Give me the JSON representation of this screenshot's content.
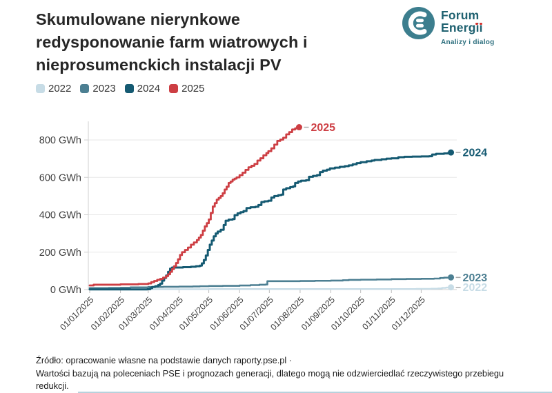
{
  "header": {
    "title_lines": [
      "Skumulowane nierynkowe",
      "redysponowanie farm wiatrowych i",
      "nieprosumenckich instalacji PV"
    ]
  },
  "logo": {
    "line1": "Forum",
    "line2": "Energii",
    "tagline": "Analizy i dialog",
    "teal": "#3c7e8e",
    "text_teal": "#1f6170",
    "red": "#d8322d"
  },
  "legend": {
    "items": [
      {
        "label": "2022",
        "color": "#c7dce6"
      },
      {
        "label": "2023",
        "color": "#4c7f92"
      },
      {
        "label": "2024",
        "color": "#155a72"
      },
      {
        "label": "2025",
        "color": "#cd3e43"
      }
    ]
  },
  "chart_data": {
    "type": "line",
    "step_interpolation": "step-after",
    "title": "Skumulowane nierynkowe redysponowanie farm wiatrowych i nieprosumenckich instalacji PV",
    "y_unit": "GWh",
    "ylim": [
      0,
      880
    ],
    "grid": "horizontal",
    "legend_position": "top-left",
    "y_ticks": [
      {
        "value": 0,
        "label": "0 GWh"
      },
      {
        "value": 200,
        "label": "200 GWh"
      },
      {
        "value": 400,
        "label": "400 GWh"
      },
      {
        "value": 600,
        "label": "600 GWh"
      },
      {
        "value": 800,
        "label": "800 GWh"
      }
    ],
    "x_ticks": {
      "days": [
        1,
        32,
        60,
        91,
        121,
        152,
        182,
        213,
        244,
        274,
        305,
        335
      ],
      "labels": [
        "01/01/2025",
        "01/02/2025",
        "01/03/2025",
        "01/04/2025",
        "01/05/2025",
        "01/06/2025",
        "01/07/2025",
        "01/08/2025",
        "01/09/2025",
        "01/10/2025",
        "01/11/2025",
        "01/12/2025"
      ]
    },
    "series": [
      {
        "name": "2022",
        "color": "#c7dce6",
        "end_label": "2022",
        "line_width": 2.4,
        "points": [
          [
            1,
            2
          ],
          [
            60,
            2
          ],
          [
            121,
            3
          ],
          [
            182,
            3
          ],
          [
            244,
            3
          ],
          [
            305,
            3
          ],
          [
            330,
            4
          ],
          [
            345,
            5
          ],
          [
            352,
            6
          ],
          [
            356,
            9
          ],
          [
            360,
            11
          ],
          [
            365,
            12
          ]
        ]
      },
      {
        "name": "2023",
        "color": "#4c7f92",
        "end_label": "2023",
        "line_width": 2.6,
        "points": [
          [
            1,
            8
          ],
          [
            20,
            9
          ],
          [
            32,
            10
          ],
          [
            42,
            12
          ],
          [
            60,
            14
          ],
          [
            75,
            15
          ],
          [
            91,
            16
          ],
          [
            105,
            17
          ],
          [
            112,
            18
          ],
          [
            121,
            19
          ],
          [
            135,
            20
          ],
          [
            152,
            22
          ],
          [
            163,
            24
          ],
          [
            172,
            26
          ],
          [
            178,
            27
          ],
          [
            180,
            45
          ],
          [
            213,
            46
          ],
          [
            228,
            47
          ],
          [
            244,
            48
          ],
          [
            256,
            50
          ],
          [
            262,
            52
          ],
          [
            274,
            53
          ],
          [
            290,
            54
          ],
          [
            305,
            56
          ],
          [
            320,
            57
          ],
          [
            335,
            58
          ],
          [
            348,
            59
          ],
          [
            354,
            62
          ],
          [
            358,
            64
          ],
          [
            365,
            65
          ]
        ]
      },
      {
        "name": "2024",
        "color": "#155a72",
        "end_label": "2024",
        "line_width": 3,
        "points": [
          [
            1,
            1
          ],
          [
            59,
            2
          ],
          [
            62,
            8
          ],
          [
            64,
            14
          ],
          [
            67,
            18
          ],
          [
            70,
            24
          ],
          [
            72,
            32
          ],
          [
            74,
            48
          ],
          [
            76,
            62
          ],
          [
            78,
            75
          ],
          [
            80,
            95
          ],
          [
            82,
            112
          ],
          [
            84,
            118
          ],
          [
            95,
            120
          ],
          [
            103,
            122
          ],
          [
            108,
            125
          ],
          [
            112,
            128
          ],
          [
            114,
            140
          ],
          [
            116,
            158
          ],
          [
            118,
            182
          ],
          [
            120,
            212
          ],
          [
            122,
            240
          ],
          [
            124,
            262
          ],
          [
            126,
            285
          ],
          [
            128,
            300
          ],
          [
            130,
            310
          ],
          [
            133,
            320
          ],
          [
            136,
            345
          ],
          [
            138,
            368
          ],
          [
            141,
            374
          ],
          [
            145,
            377
          ],
          [
            147,
            398
          ],
          [
            150,
            408
          ],
          [
            153,
            414
          ],
          [
            156,
            420
          ],
          [
            159,
            436
          ],
          [
            163,
            440
          ],
          [
            168,
            443
          ],
          [
            171,
            452
          ],
          [
            174,
            468
          ],
          [
            177,
            472
          ],
          [
            181,
            475
          ],
          [
            184,
            492
          ],
          [
            187,
            500
          ],
          [
            191,
            505
          ],
          [
            194,
            508
          ],
          [
            196,
            535
          ],
          [
            199,
            542
          ],
          [
            203,
            548
          ],
          [
            206,
            552
          ],
          [
            208,
            570
          ],
          [
            211,
            578
          ],
          [
            214,
            582
          ],
          [
            219,
            585
          ],
          [
            222,
            603
          ],
          [
            226,
            608
          ],
          [
            230,
            612
          ],
          [
            233,
            628
          ],
          [
            236,
            636
          ],
          [
            240,
            641
          ],
          [
            243,
            648
          ],
          [
            248,
            652
          ],
          [
            253,
            656
          ],
          [
            258,
            660
          ],
          [
            262,
            664
          ],
          [
            266,
            670
          ],
          [
            270,
            676
          ],
          [
            274,
            681
          ],
          [
            280,
            686
          ],
          [
            285,
            690
          ],
          [
            288,
            693
          ],
          [
            295,
            697
          ],
          [
            300,
            700
          ],
          [
            305,
            702
          ],
          [
            312,
            708
          ],
          [
            318,
            710
          ],
          [
            326,
            711
          ],
          [
            335,
            712
          ],
          [
            343,
            713
          ],
          [
            346,
            722
          ],
          [
            350,
            726
          ],
          [
            358,
            728
          ],
          [
            362,
            730
          ],
          [
            365,
            733
          ]
        ]
      },
      {
        "name": "2025",
        "color": "#cd3e43",
        "end_label": "2025",
        "line_width": 2.8,
        "points": [
          [
            1,
            22
          ],
          [
            5,
            26
          ],
          [
            32,
            28
          ],
          [
            50,
            30
          ],
          [
            60,
            33
          ],
          [
            63,
            40
          ],
          [
            66,
            46
          ],
          [
            69,
            52
          ],
          [
            72,
            57
          ],
          [
            75,
            64
          ],
          [
            78,
            72
          ],
          [
            80,
            82
          ],
          [
            82,
            95
          ],
          [
            84,
            110
          ],
          [
            86,
            125
          ],
          [
            88,
            142
          ],
          [
            90,
            162
          ],
          [
            92,
            185
          ],
          [
            94,
            200
          ],
          [
            97,
            212
          ],
          [
            100,
            225
          ],
          [
            103,
            240
          ],
          [
            106,
            252
          ],
          [
            109,
            265
          ],
          [
            111,
            278
          ],
          [
            113,
            292
          ],
          [
            115,
            315
          ],
          [
            117,
            338
          ],
          [
            119,
            355
          ],
          [
            121,
            375
          ],
          [
            123,
            410
          ],
          [
            125,
            444
          ],
          [
            127,
            462
          ],
          [
            129,
            481
          ],
          [
            131,
            490
          ],
          [
            133,
            500
          ],
          [
            135,
            515
          ],
          [
            137,
            535
          ],
          [
            139,
            550
          ],
          [
            141,
            570
          ],
          [
            143,
            578
          ],
          [
            145,
            588
          ],
          [
            147,
            593
          ],
          [
            149,
            600
          ],
          [
            152,
            612
          ],
          [
            155,
            625
          ],
          [
            158,
            640
          ],
          [
            161,
            654
          ],
          [
            164,
            662
          ],
          [
            167,
            672
          ],
          [
            170,
            690
          ],
          [
            173,
            702
          ],
          [
            176,
            718
          ],
          [
            179,
            730
          ],
          [
            181,
            740
          ],
          [
            184,
            755
          ],
          [
            187,
            775
          ],
          [
            190,
            795
          ],
          [
            193,
            802
          ],
          [
            196,
            812
          ],
          [
            199,
            830
          ],
          [
            202,
            842
          ],
          [
            205,
            856
          ],
          [
            208,
            862
          ],
          [
            212,
            868
          ]
        ]
      }
    ]
  },
  "footer": {
    "source_line": "Źródło: opracowanie własne na podstawie danych raporty.pse.pl ·",
    "note_line": "Wartości bazują na poleceniach PSE i prognozach generacji, dlatego mogą nie odzwierciedlać rzeczywistego przebiegu redukcji."
  }
}
